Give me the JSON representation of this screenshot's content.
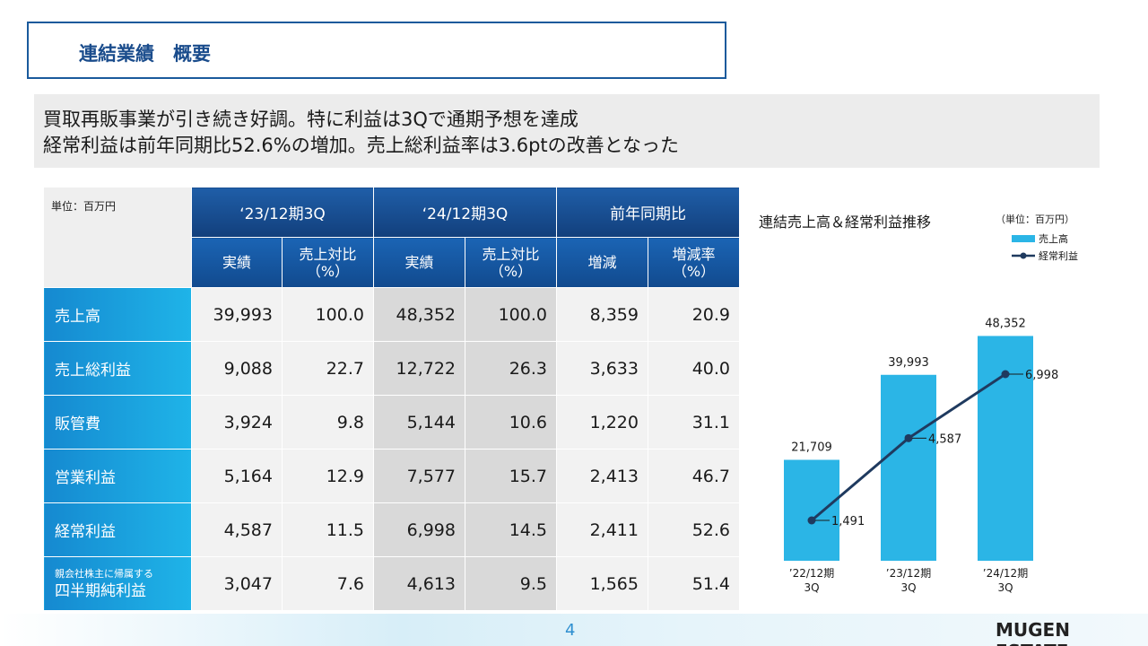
{
  "title": "連結業績　概要",
  "summary": {
    "line1": "買取再販事業が引き続き好調。特に利益は3Qで通期予想を達成",
    "line2": "経常利益は前年同期比52.6%の増加。売上総利益率は3.6ptの改善となった"
  },
  "table": {
    "unit": "単位：百万円",
    "period_headers": [
      "‘23/12期3Q",
      "‘24/12期3Q",
      "前年同期比"
    ],
    "sub_headers": [
      {
        "line1": "実績",
        "line2": ""
      },
      {
        "line1": "売上対比",
        "line2": "（%）"
      },
      {
        "line1": "実績",
        "line2": ""
      },
      {
        "line1": "売上対比",
        "line2": "（%）"
      },
      {
        "line1": "増減",
        "line2": ""
      },
      {
        "line1": "増減率",
        "line2": "（%）"
      }
    ],
    "rows": [
      {
        "label": "売上高",
        "label_small": "",
        "values": [
          "39,993",
          "100.0",
          "48,352",
          "100.0",
          "8,359",
          "20.9"
        ]
      },
      {
        "label": "売上総利益",
        "label_small": "",
        "values": [
          "9,088",
          "22.7",
          "12,722",
          "26.3",
          "3,633",
          "40.0"
        ]
      },
      {
        "label": "販管費",
        "label_small": "",
        "values": [
          "3,924",
          "9.8",
          "5,144",
          "10.6",
          "1,220",
          "31.1"
        ]
      },
      {
        "label": "営業利益",
        "label_small": "",
        "values": [
          "5,164",
          "12.9",
          "7,577",
          "15.7",
          "2,413",
          "46.7"
        ]
      },
      {
        "label": "経常利益",
        "label_small": "",
        "values": [
          "4,587",
          "11.5",
          "6,998",
          "14.5",
          "2,411",
          "52.6"
        ]
      },
      {
        "label": "四半期純利益",
        "label_small": "親会社株主に帰属する",
        "values": [
          "3,047",
          "7.6",
          "4,613",
          "9.5",
          "1,565",
          "51.4"
        ]
      }
    ]
  },
  "chart_data": {
    "type": "bar",
    "title": "連結売上高＆経常利益推移",
    "unit": "（単位：百万円）",
    "categories": [
      {
        "line1": "’22/12期",
        "line2": "3Q"
      },
      {
        "line1": "’23/12期",
        "line2": "3Q"
      },
      {
        "line1": "’24/12期",
        "line2": "3Q"
      }
    ],
    "series": [
      {
        "name": "売上高",
        "kind": "bar",
        "color": "#2bb5e6",
        "values": [
          21709,
          39993,
          48352
        ],
        "labels": [
          "21,709",
          "39,993",
          "48,352"
        ]
      },
      {
        "name": "経常利益",
        "kind": "line",
        "color": "#1f3a5f",
        "values": [
          1491,
          4587,
          6998
        ],
        "labels": [
          "1,491",
          "4,587",
          "6,998"
        ]
      }
    ],
    "legend_position": "top-right",
    "grid": false
  },
  "footer": {
    "page_number": "4",
    "brand": "MUGEN ESTATE"
  }
}
